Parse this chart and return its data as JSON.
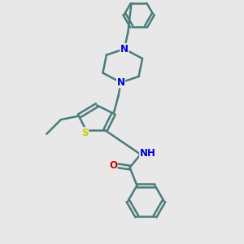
{
  "bg_color": "#e8e8e8",
  "bond_color": "#4a7c7c",
  "N_color": "#0000cc",
  "O_color": "#cc0000",
  "S_color": "#cccc00",
  "H_color": "#5a8a8a",
  "line_width": 1.8,
  "font_size": 8.5,
  "fig_w": 3.0,
  "fig_h": 3.0,
  "dpi": 100,
  "xlim": [
    0,
    10
  ],
  "ylim": [
    0,
    10
  ]
}
